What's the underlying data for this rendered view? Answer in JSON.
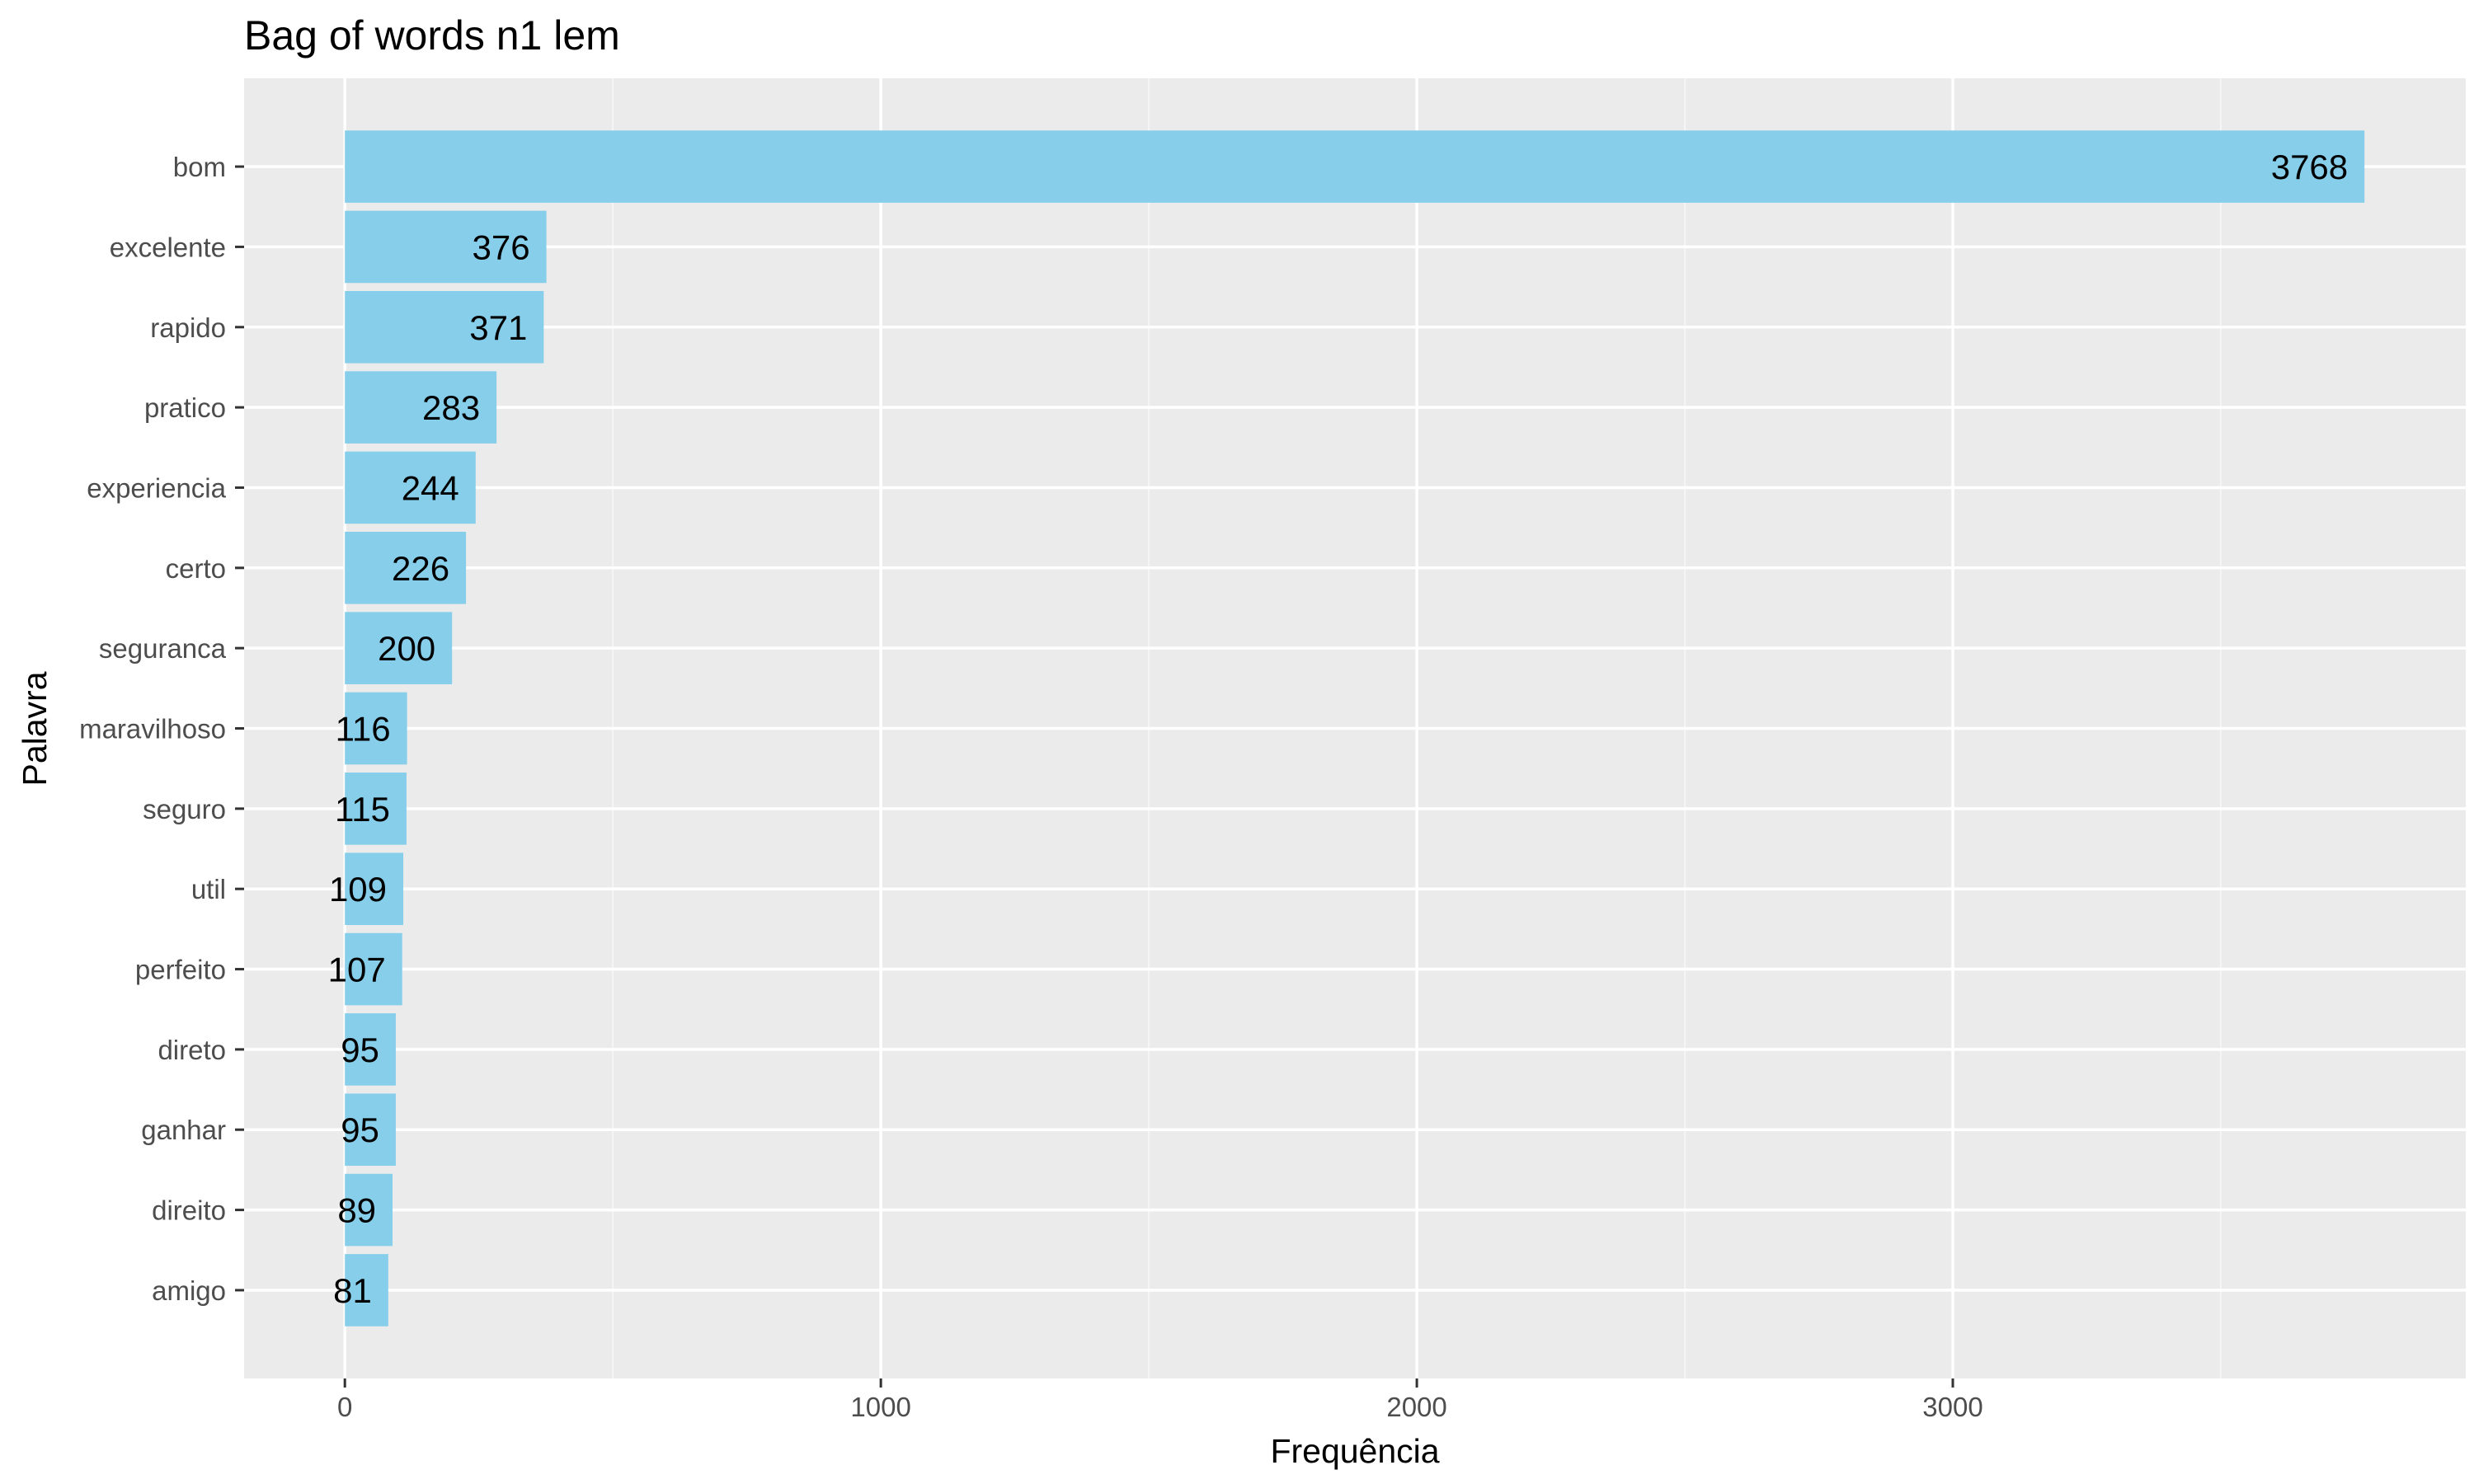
{
  "chart_data": {
    "type": "bar",
    "orientation": "horizontal",
    "title": "Bag of words n1 lem",
    "xlabel": "Frequência",
    "ylabel": "Palavra",
    "categories": [
      "bom",
      "excelente",
      "rapido",
      "pratico",
      "experiencia",
      "certo",
      "seguranca",
      "maravilhoso",
      "seguro",
      "util",
      "perfeito",
      "direto",
      "ganhar",
      "direito",
      "amigo"
    ],
    "values": [
      3768,
      376,
      371,
      283,
      244,
      226,
      200,
      116,
      115,
      109,
      107,
      95,
      95,
      89,
      81
    ],
    "data_labels": [
      "3768",
      "376",
      "371",
      "283",
      "244",
      "226",
      "200",
      "116",
      "115",
      "109",
      "107",
      "95",
      "95",
      "89",
      "81"
    ],
    "xlim": [
      -188,
      3957
    ],
    "x_ticks": [
      0,
      1000,
      2000,
      3000
    ],
    "x_tick_labels": [
      "0",
      "1000",
      "2000",
      "3000"
    ],
    "grid": true,
    "legend": "none",
    "colors": {
      "bar_fill": "#87ceeb",
      "panel_background": "#ebebeb",
      "grid_major": "#ffffff",
      "grid_minor": "#f5f5f5",
      "tick_text": "#4d4d4d",
      "tick_mark": "#333333",
      "text": "#000000"
    }
  }
}
